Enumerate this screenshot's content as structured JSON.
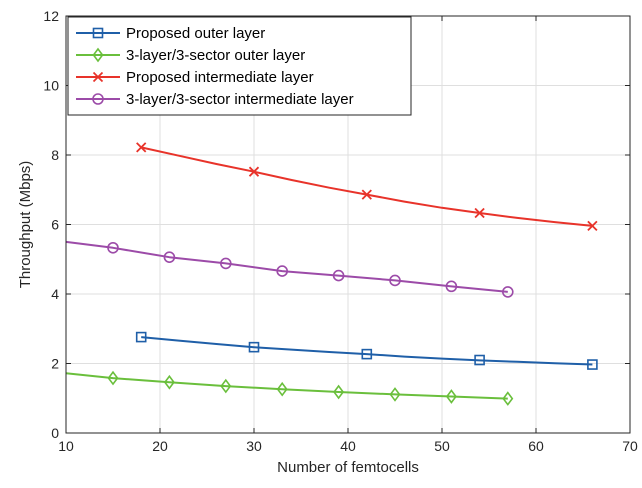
{
  "chart_data": {
    "type": "line",
    "xlabel": "Number of femtocells",
    "ylabel": "Throughput (Mbps)",
    "xlim": [
      10,
      70
    ],
    "ylim": [
      0,
      12
    ],
    "xticks": [
      10,
      20,
      30,
      40,
      50,
      60,
      70
    ],
    "yticks": [
      0,
      2,
      4,
      6,
      8,
      10,
      12
    ],
    "grid": true,
    "legend_position": "top-left",
    "series": [
      {
        "name": "Proposed outer layer",
        "color": "#1f5fa8",
        "marker": "square",
        "line": [
          [
            18,
            2.76
          ],
          [
            22,
            2.66
          ],
          [
            26,
            2.56
          ],
          [
            30,
            2.47
          ],
          [
            34,
            2.4
          ],
          [
            38,
            2.33
          ],
          [
            42,
            2.27
          ],
          [
            46,
            2.2
          ],
          [
            50,
            2.14
          ],
          [
            54,
            2.09
          ],
          [
            58,
            2.05
          ],
          [
            62,
            2.01
          ],
          [
            66,
            1.97
          ]
        ],
        "markers": [
          [
            18,
            2.76
          ],
          [
            30,
            2.47
          ],
          [
            42,
            2.27
          ],
          [
            54,
            2.1
          ],
          [
            66,
            1.97
          ]
        ]
      },
      {
        "name": "3-layer/3-sector outer layer",
        "color": "#6abf3c",
        "marker": "diamond",
        "line": [
          [
            10,
            1.72
          ],
          [
            15,
            1.58
          ],
          [
            21,
            1.46
          ],
          [
            27,
            1.35
          ],
          [
            33,
            1.26
          ],
          [
            39,
            1.18
          ],
          [
            45,
            1.11
          ],
          [
            51,
            1.05
          ],
          [
            57,
            0.99
          ]
        ],
        "markers": [
          [
            15,
            1.58
          ],
          [
            21,
            1.46
          ],
          [
            27,
            1.35
          ],
          [
            33,
            1.26
          ],
          [
            39,
            1.18
          ],
          [
            45,
            1.11
          ],
          [
            51,
            1.05
          ],
          [
            57,
            0.99
          ]
        ]
      },
      {
        "name": "Proposed intermediate layer",
        "color": "#e8332a",
        "marker": "x",
        "line": [
          [
            18,
            8.22
          ],
          [
            22,
            7.98
          ],
          [
            26,
            7.74
          ],
          [
            30,
            7.52
          ],
          [
            34,
            7.28
          ],
          [
            38,
            7.06
          ],
          [
            42,
            6.86
          ],
          [
            46,
            6.66
          ],
          [
            50,
            6.48
          ],
          [
            54,
            6.33
          ],
          [
            58,
            6.19
          ],
          [
            62,
            6.07
          ],
          [
            66,
            5.96
          ]
        ],
        "markers": [
          [
            18,
            8.22
          ],
          [
            30,
            7.52
          ],
          [
            42,
            6.86
          ],
          [
            54,
            6.33
          ],
          [
            66,
            5.96
          ]
        ]
      },
      {
        "name": "3-layer/3-sector intermediate layer",
        "color": "#9c4ba8",
        "marker": "circle",
        "line": [
          [
            10,
            5.5
          ],
          [
            15,
            5.33
          ],
          [
            21,
            5.06
          ],
          [
            27,
            4.88
          ],
          [
            33,
            4.66
          ],
          [
            39,
            4.53
          ],
          [
            45,
            4.39
          ],
          [
            51,
            4.22
          ],
          [
            57,
            4.06
          ]
        ],
        "markers": [
          [
            15,
            5.33
          ],
          [
            21,
            5.06
          ],
          [
            27,
            4.88
          ],
          [
            33,
            4.66
          ],
          [
            39,
            4.53
          ],
          [
            45,
            4.39
          ],
          [
            51,
            4.22
          ],
          [
            57,
            4.06
          ]
        ]
      }
    ]
  }
}
